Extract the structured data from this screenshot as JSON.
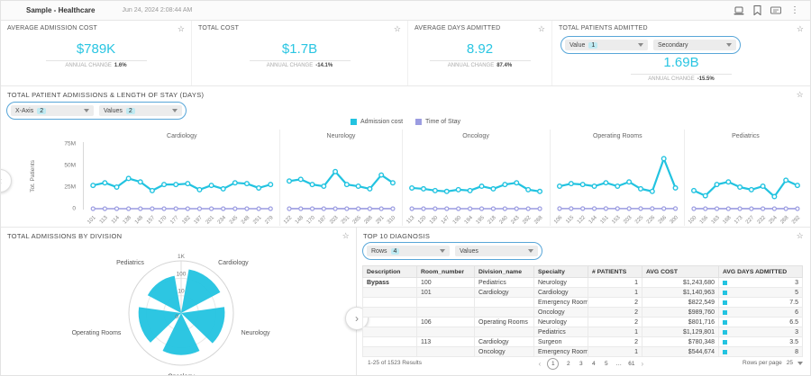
{
  "colors": {
    "accent": "#22c3e0",
    "secondary": "#9b9ce1",
    "capsule_border": "#58a6d8"
  },
  "header": {
    "title": "Sample - Healthcare",
    "timestamp": "Jun 24, 2024 2:08:44 AM",
    "icons": [
      "devices-icon",
      "bookmark-icon",
      "export-icon",
      "kebab-menu-icon"
    ]
  },
  "kpis": [
    {
      "title": "AVERAGE ADMISSION COST",
      "value": "$789K",
      "change_label": "ANNUAL CHANGE",
      "change_value": "1.6%"
    },
    {
      "title": "TOTAL COST",
      "value": "$1.7B",
      "change_label": "ANNUAL CHANGE",
      "change_value": "-14.1%"
    },
    {
      "title": "AVERAGE DAYS ADMITTED",
      "value": "8.92",
      "change_label": "ANNUAL CHANGE",
      "change_value": "87.4%"
    },
    {
      "title": "TOTAL PATIENTS ADMITTED",
      "value": "1.69B",
      "change_label": "ANNUAL CHANGE",
      "change_value": "-15.5%",
      "dropdowns": [
        {
          "label": "Value",
          "badge": "1"
        },
        {
          "label": "Secondary",
          "badge": ""
        }
      ]
    }
  ],
  "line_section": {
    "title": "TOTAL PATIENT ADMISSIONS & LENGTH OF STAY (DAYS)",
    "dropdowns": [
      {
        "label": "X-Axis",
        "badge": "2"
      },
      {
        "label": "Values",
        "badge": "2"
      }
    ],
    "legend": [
      {
        "label": "Admission cost",
        "color": "#22c3e0"
      },
      {
        "label": "Time of Stay",
        "color": "#9b9ce1"
      }
    ]
  },
  "chart_data": [
    {
      "type": "line",
      "title": "TOTAL PATIENT ADMISSIONS & LENGTH OF STAY (DAYS)",
      "ylabel": "Tot. Patients",
      "ylim": [
        0,
        78
      ],
      "unit": "millions",
      "yticks": [
        {
          "v": 75,
          "label": "75M"
        },
        {
          "v": 50,
          "label": "50M"
        },
        {
          "v": 25,
          "label": "25M"
        },
        {
          "v": 0,
          "label": "0"
        }
      ],
      "series_names": [
        "Admission cost",
        "Time of Stay"
      ],
      "panels": [
        {
          "name": "Cardiology",
          "x": [
            "101",
            "113",
            "114",
            "138",
            "148",
            "157",
            "170",
            "177",
            "182",
            "197",
            "201",
            "234",
            "245",
            "248",
            "251",
            "279"
          ],
          "admission_cost": [
            27,
            30,
            25,
            35,
            31,
            21,
            28,
            28,
            29,
            22,
            27,
            23,
            30,
            29,
            24,
            28
          ],
          "time_of_stay": [
            0,
            0,
            0,
            0,
            0,
            0,
            0,
            0,
            0,
            0,
            0,
            0,
            0,
            0,
            0,
            0
          ]
        },
        {
          "name": "Neurology",
          "x": [
            "122",
            "148",
            "170",
            "187",
            "203",
            "251",
            "265",
            "288",
            "291",
            "310"
          ],
          "admission_cost": [
            32,
            34,
            28,
            26,
            43,
            28,
            26,
            23,
            39,
            30
          ],
          "time_of_stay": [
            0,
            0,
            0,
            0,
            0,
            0,
            0,
            0,
            0,
            0
          ]
        },
        {
          "name": "Oncology",
          "x": [
            "113",
            "120",
            "130",
            "147",
            "190",
            "194",
            "195",
            "218",
            "240",
            "243",
            "262",
            "268"
          ],
          "admission_cost": [
            24,
            23,
            21,
            20,
            22,
            21,
            26,
            23,
            28,
            30,
            22,
            20
          ],
          "time_of_stay": [
            0,
            0,
            0,
            0,
            0,
            0,
            0,
            0,
            0,
            0,
            0,
            0
          ]
        },
        {
          "name": "Operating Rooms",
          "x": [
            "106",
            "115",
            "122",
            "144",
            "151",
            "153",
            "203",
            "225",
            "226",
            "266",
            "300"
          ],
          "admission_cost": [
            26,
            29,
            28,
            26,
            30,
            26,
            31,
            23,
            20,
            58,
            24
          ],
          "time_of_stay": [
            0,
            0,
            0,
            0,
            0,
            0,
            0,
            0,
            0,
            0,
            0
          ]
        },
        {
          "name": "Pediatrics",
          "x": [
            "100",
            "156",
            "163",
            "168",
            "173",
            "227",
            "232",
            "254",
            "268",
            "292"
          ],
          "admission_cost": [
            21,
            15,
            28,
            31,
            25,
            22,
            26,
            14,
            33,
            27
          ],
          "time_of_stay": [
            0,
            0,
            0,
            0,
            0,
            0,
            0,
            0,
            0,
            0
          ]
        }
      ]
    },
    {
      "type": "polar-bar",
      "title": "TOTAL ADMISSIONS BY DIVISION",
      "categories": [
        "Cardiology",
        "Neurology",
        "Oncology",
        "Operating Rooms",
        "Pediatrics"
      ],
      "values": [
        350,
        320,
        260,
        280,
        150
      ],
      "radial_ticks": [
        "0",
        "10",
        "100",
        "1K"
      ],
      "scale": "log",
      "color": "#22c3e0"
    }
  ],
  "table_section": {
    "title": "TOP 10 DIAGNOSIS",
    "dropdowns": [
      {
        "label": "Rows",
        "badge": "4"
      },
      {
        "label": "Values",
        "badge": ""
      }
    ],
    "columns": [
      "Description",
      "Room_number",
      "Division_name",
      "Specialty",
      "# PATIENTS",
      "AVG COST",
      "AVG DAYS ADMITTED"
    ],
    "rows": [
      [
        "Bypass",
        "100",
        "Pediatrics",
        "Neurology",
        "1",
        "$1,243,680",
        "3"
      ],
      [
        "",
        "101",
        "Cardiology",
        "Cardiology",
        "1",
        "$1,140,963",
        "5"
      ],
      [
        "",
        "",
        "",
        "Emergency Room",
        "2",
        "$822,549",
        "7.5"
      ],
      [
        "",
        "",
        "",
        "Oncology",
        "2",
        "$989,760",
        "6"
      ],
      [
        "",
        "106",
        "Operating Rooms",
        "Neurology",
        "2",
        "$801,716",
        "6.5"
      ],
      [
        "",
        "",
        "",
        "Pediatrics",
        "1",
        "$1,129,801",
        "3"
      ],
      [
        "",
        "113",
        "Cardiology",
        "Surgeon",
        "2",
        "$780,348",
        "3.5"
      ],
      [
        "",
        "",
        "Oncology",
        "Emergency Room",
        "1",
        "$544,674",
        "8"
      ]
    ],
    "pagination": {
      "results": "1-25 of 1523 Results",
      "pages": [
        "1",
        "2",
        "3",
        "4",
        "5",
        "…",
        "61"
      ],
      "current": "1",
      "prev": "‹",
      "next": "›",
      "rows_per_page_label": "Rows per page",
      "rows_per_page": "25"
    }
  }
}
